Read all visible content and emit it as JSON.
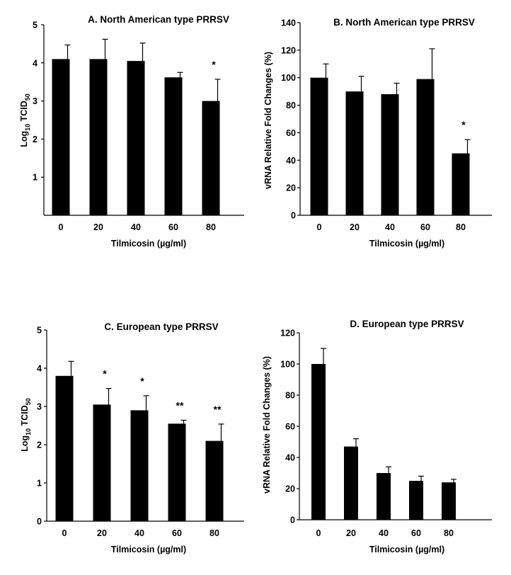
{
  "chart_data": [
    {
      "panel": "A",
      "type": "bar",
      "title": "A. North American type PRRSV",
      "xlabel": "Tilmicosin (µg/ml)",
      "ylabel_main": "Log",
      "ylabel_sub": "10",
      "ylabel_rest": " TCID",
      "ylabel_sub2": "50",
      "categories": [
        "0",
        "20",
        "40",
        "60",
        "80"
      ],
      "values": [
        4.1,
        4.1,
        4.05,
        3.62,
        3.0
      ],
      "errors": [
        0.37,
        0.52,
        0.47,
        0.13,
        0.57
      ],
      "significance": [
        "",
        "",
        "",
        "",
        "*"
      ],
      "ylim": [
        0,
        5
      ],
      "yticks": [
        1,
        2,
        3,
        4,
        5
      ],
      "color": "#000000"
    },
    {
      "panel": "B",
      "type": "bar",
      "title": "B. North American type PRRSV",
      "xlabel": "Tilmicosin (µg/ml)",
      "ylabel_main": "vRNA Relative Fold Changes (%)",
      "categories": [
        "0",
        "20",
        "40",
        "60",
        "80"
      ],
      "values": [
        100,
        90,
        88,
        99,
        45
      ],
      "errors": [
        10,
        11,
        8,
        22,
        10
      ],
      "significance": [
        "",
        "",
        "",
        "",
        "*"
      ],
      "ylim": [
        0,
        140
      ],
      "yticks": [
        0,
        20,
        40,
        60,
        80,
        100,
        120,
        140
      ],
      "color": "#000000"
    },
    {
      "panel": "C",
      "type": "bar",
      "title": "C. European type PRRSV",
      "xlabel": "Tilmicosin (µg/ml)",
      "ylabel_main": "Log",
      "ylabel_sub": "10",
      "ylabel_rest": " TCID",
      "ylabel_sub2": "50",
      "categories": [
        "0",
        "20",
        "40",
        "60",
        "80"
      ],
      "values": [
        3.8,
        3.05,
        2.9,
        2.55,
        2.1
      ],
      "errors": [
        0.38,
        0.42,
        0.38,
        0.09,
        0.44
      ],
      "significance": [
        "",
        "*",
        "*",
        "**",
        "**"
      ],
      "ylim": [
        0,
        5
      ],
      "yticks": [
        0,
        1,
        2,
        3,
        4,
        5
      ],
      "color": "#000000"
    },
    {
      "panel": "D",
      "type": "bar",
      "title": "D. European type PRRSV",
      "xlabel": "Tilmicosin (µg/ml)",
      "ylabel_main": "vRNA Relative Fold Changes (%)",
      "categories": [
        "0",
        "20",
        "40",
        "60",
        "80"
      ],
      "values": [
        100,
        47,
        30,
        25,
        24
      ],
      "errors": [
        10,
        5,
        4,
        3,
        2
      ],
      "significance": [
        "",
        "",
        "",
        "",
        ""
      ],
      "ylim": [
        0,
        120
      ],
      "yticks": [
        0,
        20,
        40,
        60,
        80,
        100,
        120
      ],
      "color": "#000000"
    }
  ]
}
